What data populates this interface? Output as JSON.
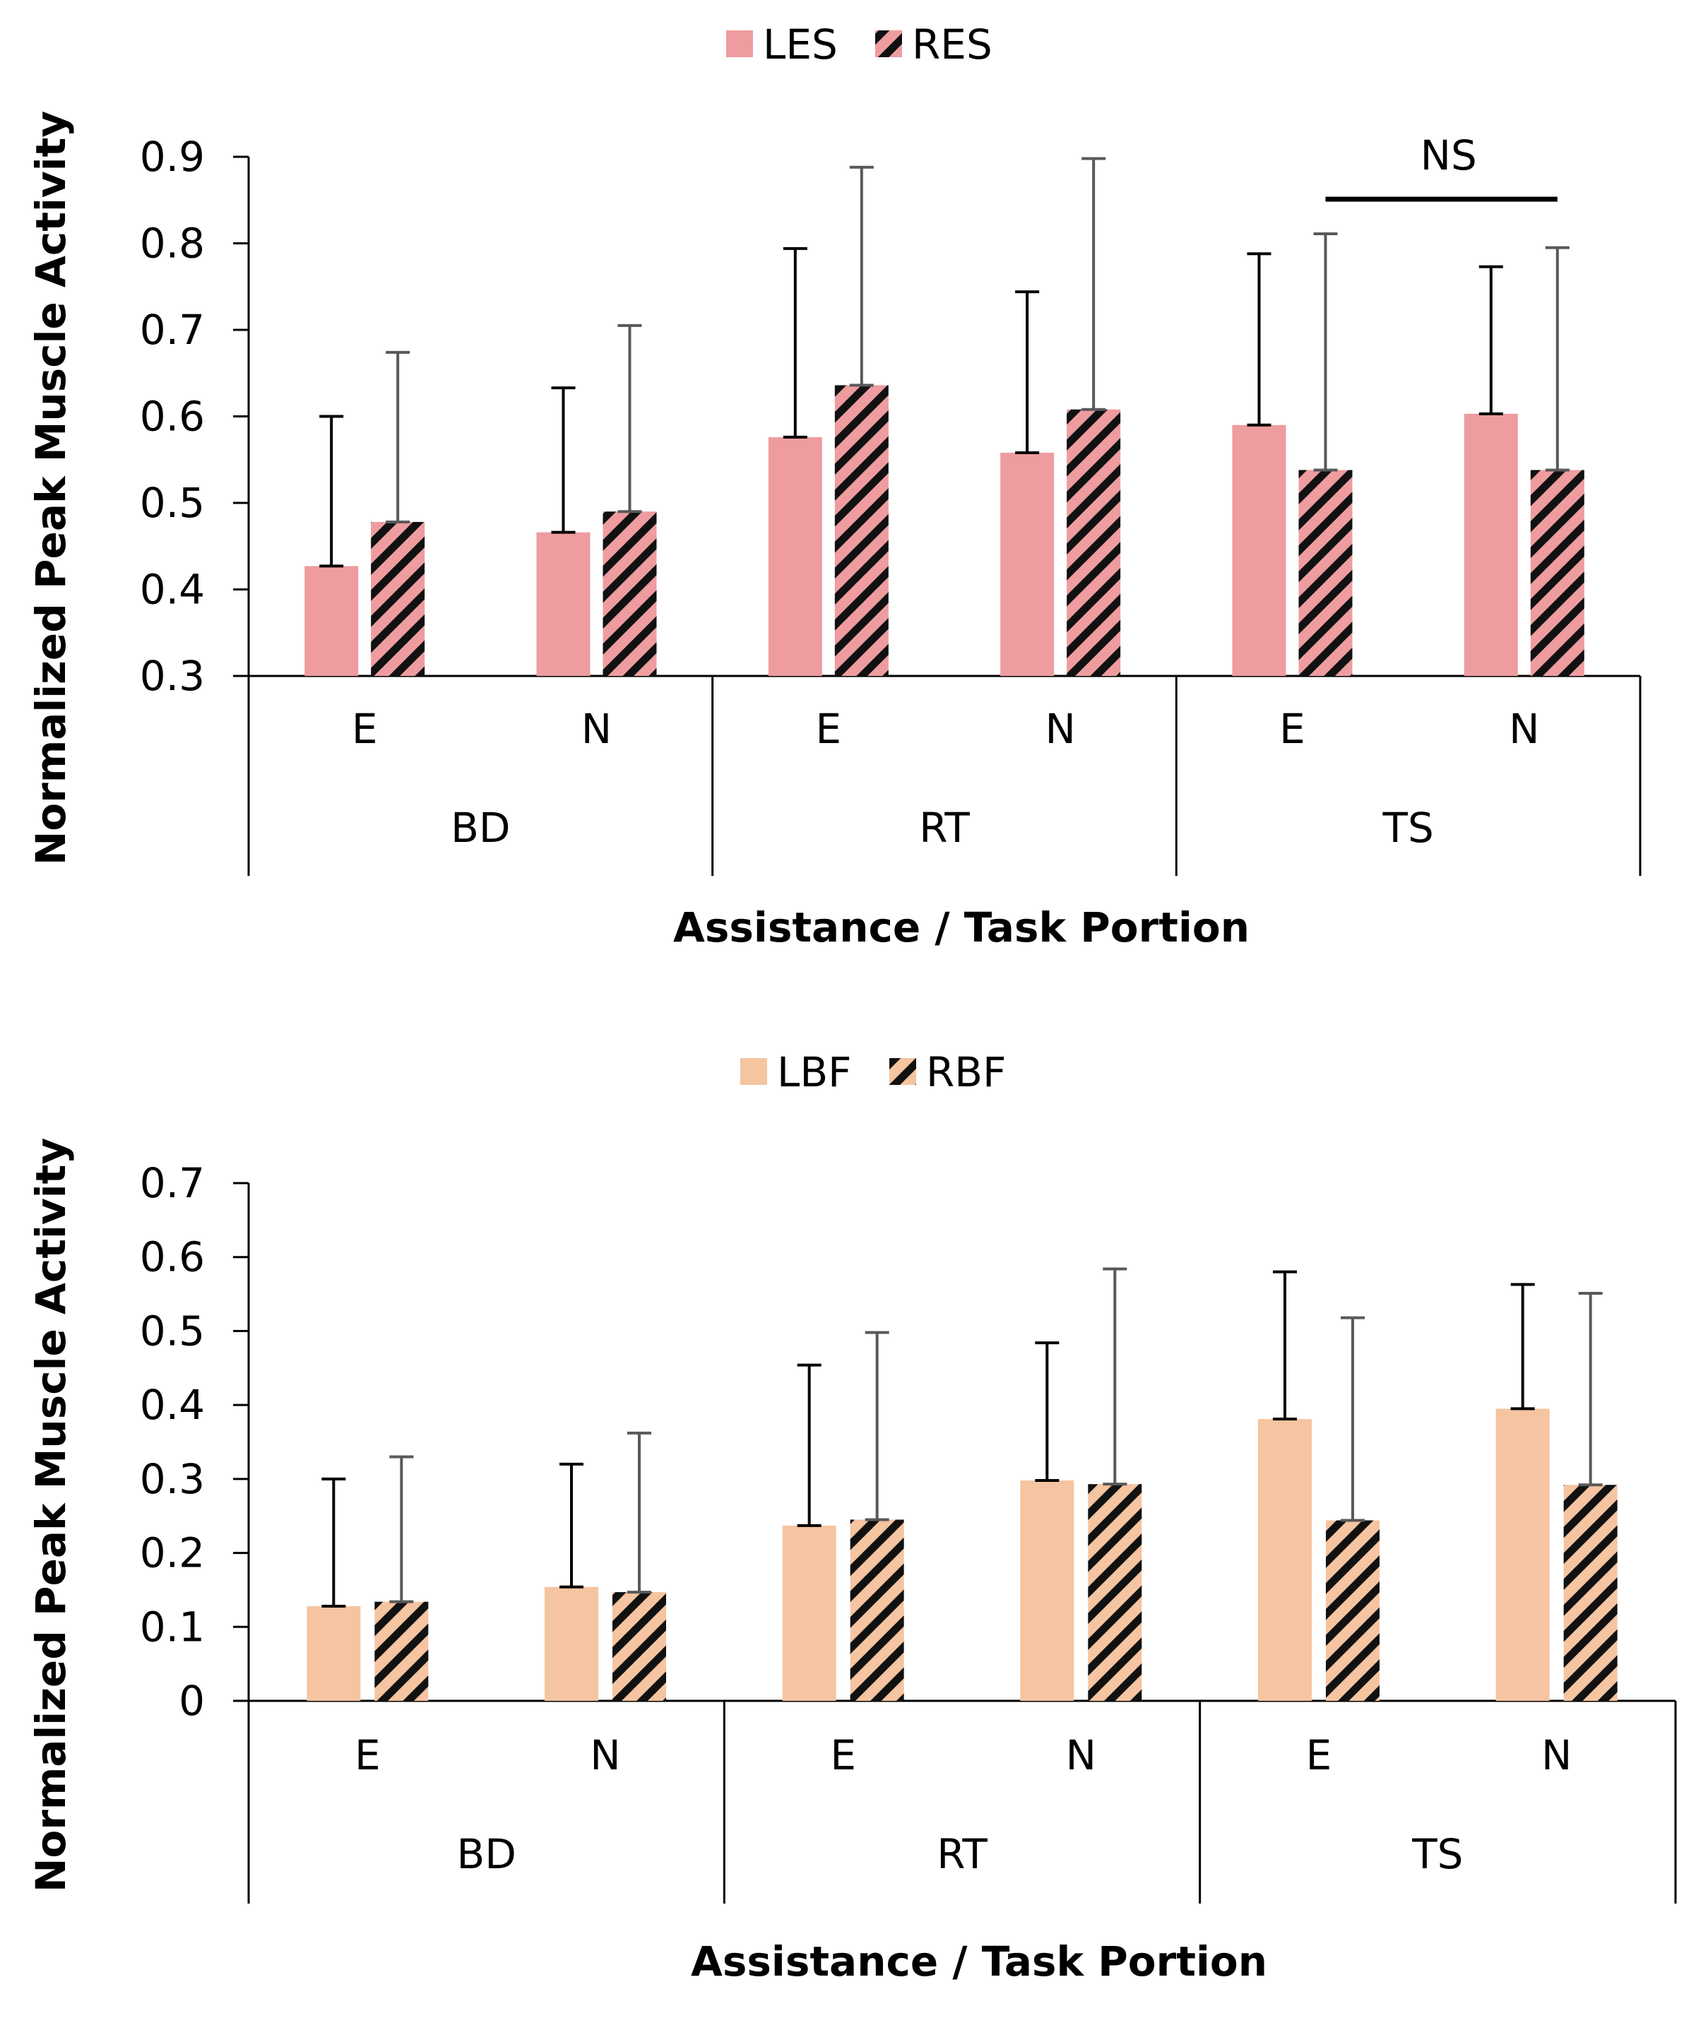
{
  "chart_data": [
    {
      "type": "bar",
      "title": "",
      "xlabel": "Assistance / Task Portion",
      "ylabel": "Normalized Peak Muscle Activity",
      "ylim": [
        0.3,
        0.9
      ],
      "yticks": [
        0.3,
        0.4,
        0.5,
        0.6,
        0.7,
        0.8,
        0.9
      ],
      "ytick_labels": [
        "0.3",
        "0.4",
        "0.5",
        "0.6",
        "0.7",
        "0.8",
        "0.9"
      ],
      "groups": [
        "BD",
        "RT",
        "TS"
      ],
      "categories": [
        "E",
        "N",
        "E",
        "N",
        "E",
        "N"
      ],
      "legend_position": "top-center",
      "series": [
        {
          "name": "LES",
          "color": "#ee9c9f",
          "pattern": "solid",
          "values": [
            0.427,
            0.466,
            0.576,
            0.558,
            0.59,
            0.603
          ],
          "error": [
            0.173,
            0.167,
            0.218,
            0.186,
            0.198,
            0.17
          ]
        },
        {
          "name": "RES",
          "color": "#ee9c9f",
          "pattern": "hatched",
          "values": [
            0.478,
            0.49,
            0.636,
            0.608,
            0.538,
            0.538
          ],
          "error": [
            0.196,
            0.215,
            0.252,
            0.29,
            0.273,
            0.257
          ]
        }
      ],
      "annotation": {
        "text": "NS",
        "from_category": 4,
        "to_category": 5
      }
    },
    {
      "type": "bar",
      "title": "",
      "xlabel": "Assistance / Task Portion",
      "ylabel": "Normalized Peak Muscle Activity",
      "ylim": [
        0,
        0.7
      ],
      "yticks": [
        0,
        0.1,
        0.2,
        0.3,
        0.4,
        0.5,
        0.6,
        0.7
      ],
      "ytick_labels": [
        "0",
        "0.1",
        "0.2",
        "0.3",
        "0.4",
        "0.5",
        "0.6",
        "0.7"
      ],
      "groups": [
        "BD",
        "RT",
        "TS"
      ],
      "categories": [
        "E",
        "N",
        "E",
        "N",
        "E",
        "N"
      ],
      "legend_position": "top-center",
      "series": [
        {
          "name": "LBF",
          "color": "#f5c4a0",
          "pattern": "solid",
          "values": [
            0.128,
            0.154,
            0.237,
            0.298,
            0.381,
            0.395
          ],
          "error": [
            0.172,
            0.166,
            0.217,
            0.186,
            0.199,
            0.168
          ]
        },
        {
          "name": "RBF",
          "color": "#f5c4a0",
          "pattern": "hatched",
          "values": [
            0.134,
            0.147,
            0.245,
            0.293,
            0.244,
            0.292
          ],
          "error": [
            0.196,
            0.215,
            0.253,
            0.291,
            0.274,
            0.259
          ]
        }
      ]
    }
  ]
}
